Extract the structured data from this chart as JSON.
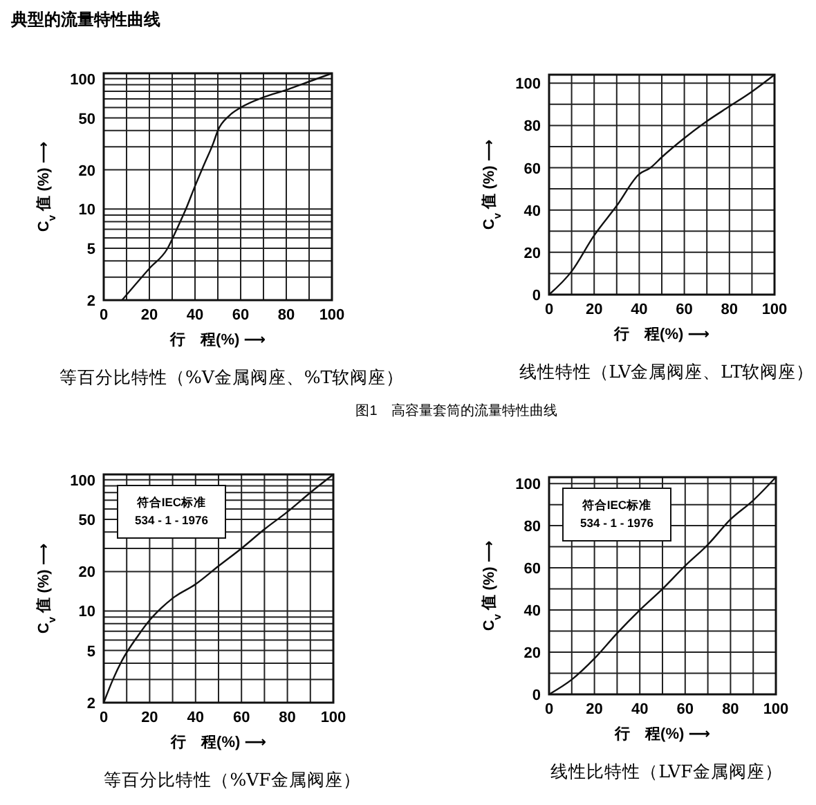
{
  "chart_data": [
    {
      "type": "line",
      "title": "等百分比特性（%V金属阀座、%T软阀座）",
      "xlabel": "行　程(%)  ⟶",
      "ylabel": "C$_{v}$ 值 (%) ⟶",
      "log": "y",
      "grid": true,
      "color": "#111111",
      "annotations": [
        "典型的流量特性曲线"
      ],
      "x": [
        8,
        20,
        28,
        32,
        36,
        40,
        44,
        48,
        50,
        55,
        60,
        70,
        80,
        90,
        100
      ],
      "values": [
        2,
        3.5,
        5,
        7,
        10,
        15,
        22,
        32,
        40,
        52,
        60,
        72,
        82,
        95,
        110
      ],
      "xlim": [
        0,
        100
      ],
      "ylim": [
        2,
        110
      ],
      "xticks": [
        0,
        {
          "value": 10,
          "label": null
        },
        20,
        {
          "value": 30,
          "label": null
        },
        40,
        {
          "value": 50,
          "label": null
        },
        60,
        {
          "value": 70,
          "label": null
        },
        80,
        {
          "value": 90,
          "label": null
        },
        100
      ],
      "yticks": [
        2,
        {
          "value": 3,
          "label": null
        },
        {
          "value": 4,
          "label": null
        },
        5,
        {
          "value": 6,
          "label": null
        },
        {
          "value": 7,
          "label": null
        },
        {
          "value": 8,
          "label": null
        },
        {
          "value": 9,
          "label": null
        },
        10,
        20,
        {
          "value": 30,
          "label": null
        },
        {
          "value": 40,
          "label": null
        },
        50,
        {
          "value": 60,
          "label": null
        },
        {
          "value": 70,
          "label": null
        },
        {
          "value": 80,
          "label": null
        },
        {
          "value": 90,
          "label": null
        },
        100
      ]
    },
    {
      "type": "line",
      "title": "线性特性（LV金属阀座、LT软阀座）",
      "xlabel": "行　程(%)  ⟶",
      "ylabel": "C$_{v}$ 值 (%) ⟶",
      "grid": true,
      "color": "#111111",
      "annotations": [
        "图1　高容量套筒的流量特性曲线"
      ],
      "x": [
        0,
        10,
        20,
        30,
        40,
        45,
        50,
        60,
        70,
        80,
        90,
        100
      ],
      "values": [
        0,
        11,
        28,
        42,
        57,
        60,
        65,
        74,
        82,
        89,
        96,
        104
      ],
      "xlim": [
        0,
        100
      ],
      "ylim": [
        0,
        104
      ],
      "xticks": [
        0,
        {
          "value": 10,
          "label": null
        },
        20,
        {
          "value": 30,
          "label": null
        },
        40,
        {
          "value": 50,
          "label": null
        },
        60,
        {
          "value": 70,
          "label": null
        },
        80,
        {
          "value": 90,
          "label": null
        },
        100
      ],
      "yticks": [
        0,
        {
          "value": 10,
          "label": null
        },
        20,
        {
          "value": 30,
          "label": null
        },
        40,
        {
          "value": 50,
          "label": null
        },
        60,
        {
          "value": 70,
          "label": null
        },
        80,
        {
          "value": 90,
          "label": null
        },
        100
      ]
    },
    {
      "type": "line",
      "title": "等百分比特性（%VF金属阀座）",
      "xlabel": "行　程(%)  ⟶",
      "ylabel": "C$_{v}$ 值 (%) ⟶",
      "log": "y",
      "grid": true,
      "color": "#111111",
      "annotations": [
        "符合IEC标准\n534 - 1 - 1976"
      ],
      "x": [
        0,
        4,
        8,
        15,
        20,
        25,
        30,
        40,
        50,
        60,
        70,
        80,
        90,
        100
      ],
      "values": [
        2,
        3,
        4.2,
        6.5,
        8.5,
        10.5,
        12.5,
        16,
        22,
        30,
        42,
        57,
        80,
        110
      ],
      "xlim": [
        0,
        100
      ],
      "ylim": [
        2,
        110
      ],
      "xticks": [
        0,
        {
          "value": 10,
          "label": null
        },
        20,
        {
          "value": 30,
          "label": null
        },
        40,
        {
          "value": 50,
          "label": null
        },
        60,
        {
          "value": 70,
          "label": null
        },
        80,
        {
          "value": 90,
          "label": null
        },
        100
      ],
      "yticks": [
        2,
        {
          "value": 3,
          "label": null
        },
        {
          "value": 4,
          "label": null
        },
        5,
        {
          "value": 6,
          "label": null
        },
        {
          "value": 7,
          "label": null
        },
        {
          "value": 8,
          "label": null
        },
        {
          "value": 9,
          "label": null
        },
        10,
        20,
        {
          "value": 30,
          "label": null
        },
        {
          "value": 40,
          "label": null
        },
        50,
        {
          "value": 60,
          "label": null
        },
        {
          "value": 70,
          "label": null
        },
        {
          "value": 80,
          "label": null
        },
        {
          "value": 90,
          "label": null
        },
        100
      ]
    },
    {
      "type": "line",
      "title": "线性比特性（LVF金属阀座）",
      "xlabel": "行　程(%)  ⟶",
      "ylabel": "C$_{v}$ 值 (%) ⟶",
      "grid": true,
      "color": "#111111",
      "annotations": [
        "符合IEC标准\n534 - 1 - 1976"
      ],
      "x": [
        0,
        10,
        20,
        30,
        40,
        50,
        60,
        70,
        80,
        90,
        100
      ],
      "values": [
        0,
        7,
        17,
        29,
        40,
        50,
        61,
        71,
        83,
        92,
        103
      ],
      "xlim": [
        0,
        100
      ],
      "ylim": [
        0,
        103
      ],
      "xticks": [
        0,
        {
          "value": 10,
          "label": null
        },
        20,
        {
          "value": 30,
          "label": null
        },
        40,
        {
          "value": 50,
          "label": null
        },
        60,
        {
          "value": 70,
          "label": null
        },
        80,
        {
          "value": 90,
          "label": null
        },
        100
      ],
      "yticks": [
        0,
        {
          "value": 10,
          "label": null
        },
        20,
        {
          "value": 30,
          "label": null
        },
        40,
        {
          "value": 50,
          "label": null
        },
        60,
        {
          "value": 70,
          "label": null
        },
        80,
        {
          "value": 90,
          "label": null
        },
        100
      ]
    }
  ]
}
